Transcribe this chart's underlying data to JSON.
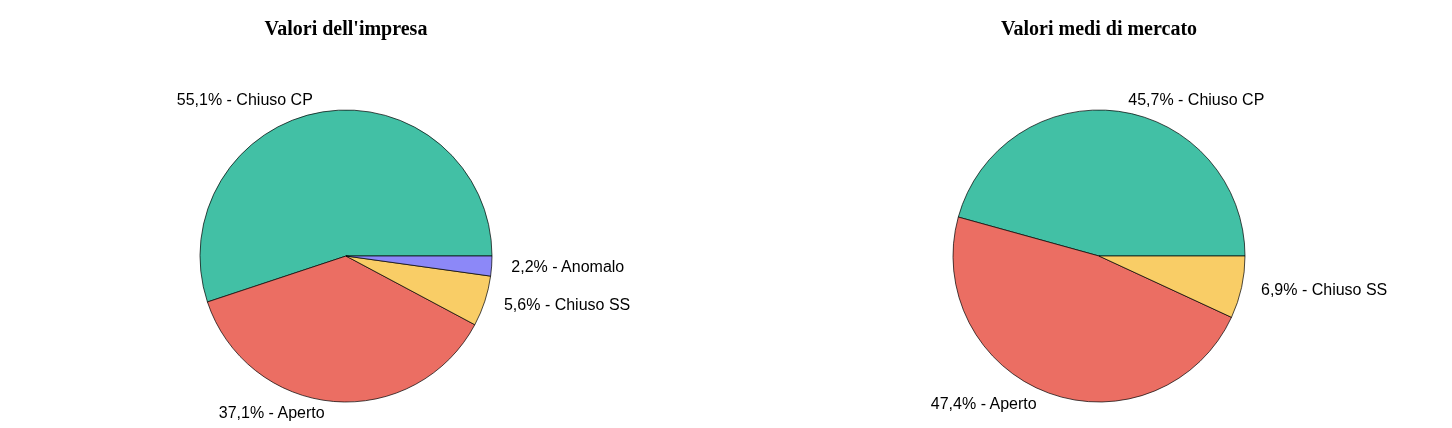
{
  "chart_data": [
    {
      "type": "pie",
      "title": "Valori dell'impresa",
      "legend": false,
      "categories": [
        "Chiuso CP",
        "Aperto",
        "Chiuso SS",
        "Anomalo"
      ],
      "values": [
        55.1,
        37.1,
        5.6,
        2.2
      ],
      "value_labels": [
        "55,1%",
        "37,1%",
        "5,6%",
        "2,2%"
      ],
      "colors": [
        "#42c0a5",
        "#eb6e63",
        "#f9cd66",
        "#8c88f8"
      ]
    },
    {
      "type": "pie",
      "title": "Valori medi di mercato",
      "legend": false,
      "categories": [
        "Chiuso CP",
        "Aperto",
        "Chiuso SS"
      ],
      "values": [
        45.7,
        47.4,
        6.9
      ],
      "value_labels": [
        "45,7%",
        "47,4%",
        "6,9%"
      ],
      "colors": [
        "#42c0a5",
        "#eb6e63",
        "#f9cd66"
      ]
    }
  ]
}
